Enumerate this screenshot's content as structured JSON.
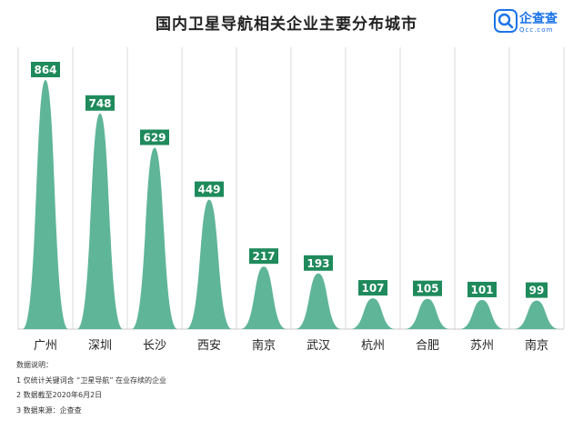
{
  "title": "国内卫星导航相关企业主要分布城市",
  "logo": {
    "name": "企查查",
    "domain": "Qcc.com",
    "icon": "qcc-search-icon",
    "color": "#1a73e8"
  },
  "colors": {
    "bar": "#5fb598",
    "label_bg": "#1f8a5c",
    "label_text": "#ffffff",
    "grid": "#d9d9d9"
  },
  "chart_data": {
    "type": "bar",
    "style": "bell-shaped peaks",
    "title": "国内卫星导航相关企业主要分布城市",
    "categories": [
      "广州",
      "深圳",
      "长沙",
      "西安",
      "南京",
      "武汉",
      "杭州",
      "合肥",
      "苏州",
      "南京"
    ],
    "values": [
      864,
      748,
      629,
      449,
      217,
      193,
      107,
      105,
      101,
      99
    ],
    "ylim": [
      0,
      900
    ],
    "grid": "vertical",
    "data_labels": true,
    "xlabel": "",
    "ylabel": ""
  },
  "notes": {
    "heading": "数据说明：",
    "lines": [
      "1 仅统计关键词含 “卫星导航” 在业存续的企业",
      "2 数据截至2020年6月2日",
      "3 数据来源：企查查"
    ]
  }
}
